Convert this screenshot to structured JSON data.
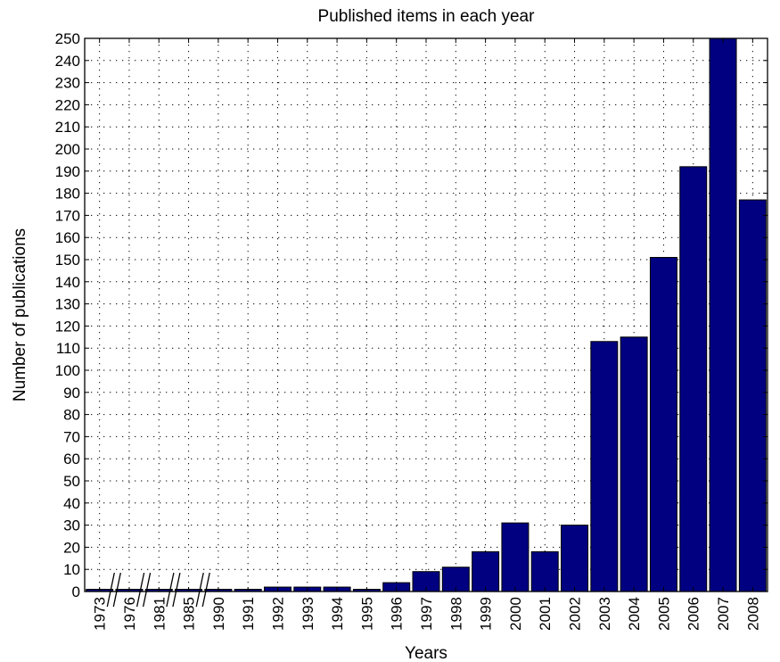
{
  "chart_data": {
    "type": "bar",
    "title": "Published items in each year",
    "xlabel": "Years",
    "ylabel": "Number of publications",
    "ylim": [
      0,
      250
    ],
    "yticks": [
      0,
      10,
      20,
      30,
      40,
      50,
      60,
      70,
      80,
      90,
      100,
      110,
      120,
      130,
      140,
      150,
      160,
      170,
      180,
      190,
      200,
      210,
      220,
      230,
      240,
      250
    ],
    "grid": true,
    "bar_color": "#000080",
    "categories": [
      "1973",
      "1976",
      "1981",
      "1985",
      "1990",
      "1991",
      "1992",
      "1993",
      "1994",
      "1995",
      "1996",
      "1997",
      "1998",
      "1999",
      "2000",
      "2001",
      "2002",
      "2003",
      "2004",
      "2005",
      "2006",
      "2007",
      "2008"
    ],
    "values": [
      1,
      1,
      1,
      1,
      1,
      1,
      2,
      2,
      2,
      1,
      4,
      9,
      11,
      18,
      31,
      18,
      30,
      113,
      115,
      151,
      192,
      250,
      177
    ],
    "axis_breaks_after": [
      "1973",
      "1976",
      "1981",
      "1985"
    ]
  }
}
